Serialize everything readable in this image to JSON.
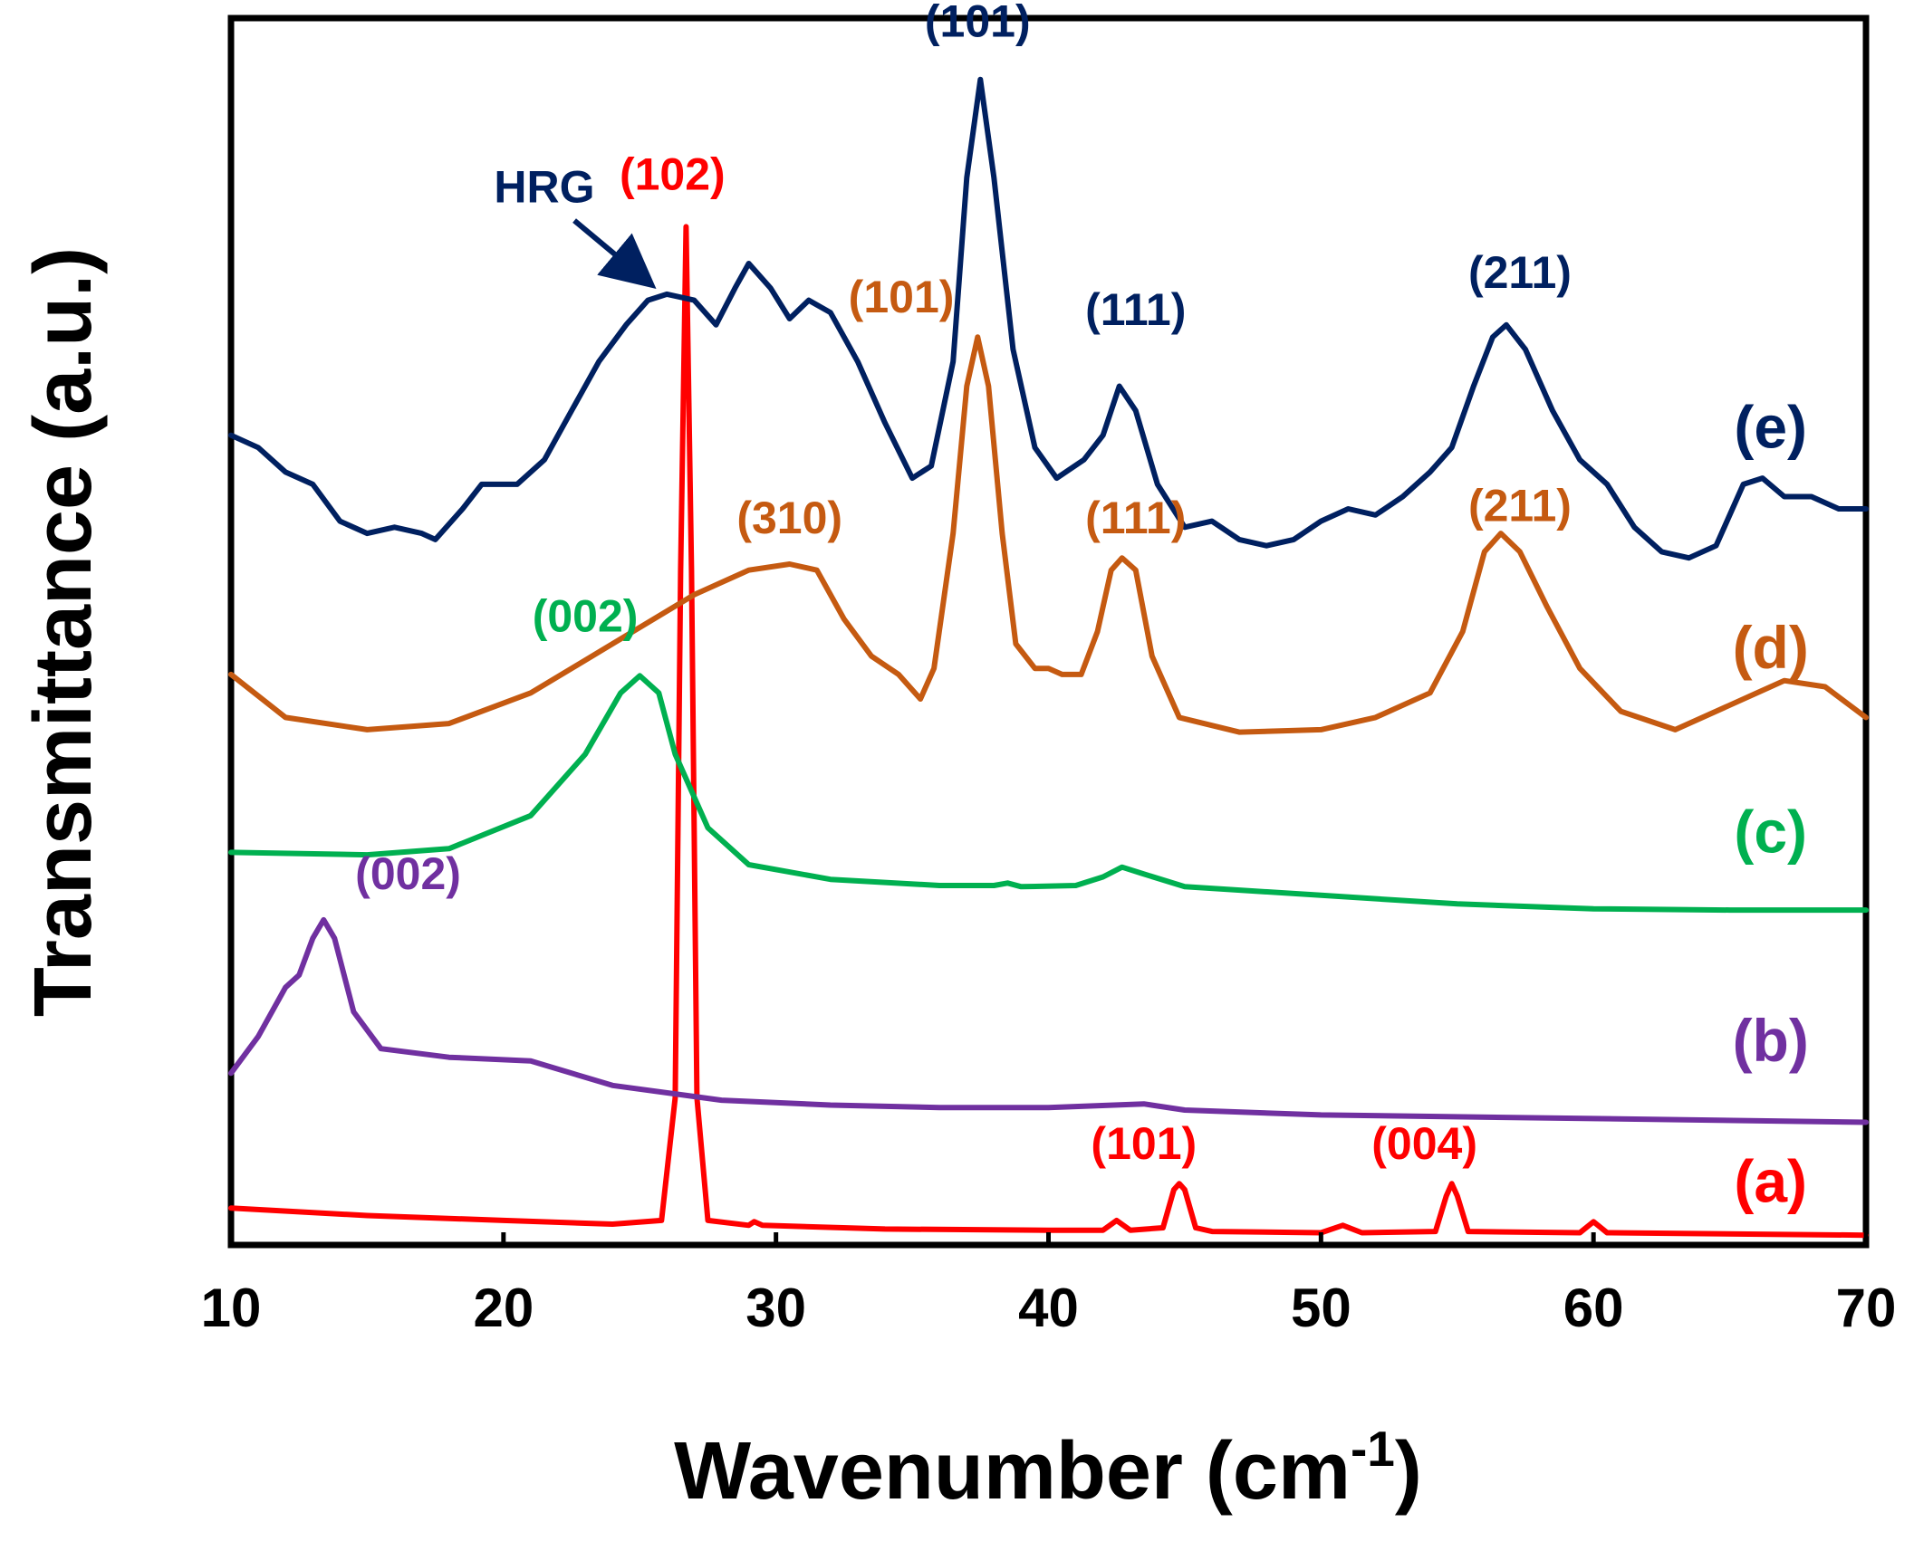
{
  "chart_data": {
    "type": "line",
    "xlabel": "Wavenumber (cm",
    "xlabel_sup": "-1",
    "xlabel_close": ")",
    "ylabel": "Transmittance (a.u.)",
    "xlim": [
      10,
      70
    ],
    "ylim": [
      0,
      100
    ],
    "x_ticks": [
      "10",
      "20",
      "30",
      "40",
      "50",
      "60",
      "70"
    ],
    "y_ticks_shown": false,
    "series": [
      {
        "name": "(a)",
        "color": "#ff0000",
        "points": [
          [
            10,
            3.0
          ],
          [
            15,
            2.4
          ],
          [
            20,
            2.0
          ],
          [
            24,
            1.7
          ],
          [
            25.8,
            2.0
          ],
          [
            26.3,
            12
          ],
          [
            26.5,
            55
          ],
          [
            26.7,
            83
          ],
          [
            26.9,
            55
          ],
          [
            27.1,
            12
          ],
          [
            27.5,
            2.0
          ],
          [
            29,
            1.6
          ],
          [
            29.2,
            1.9
          ],
          [
            29.5,
            1.6
          ],
          [
            34,
            1.3
          ],
          [
            40,
            1.2
          ],
          [
            42,
            1.2
          ],
          [
            42.5,
            2.0
          ],
          [
            43,
            1.2
          ],
          [
            44.2,
            1.4
          ],
          [
            44.6,
            4.5
          ],
          [
            44.8,
            5.0
          ],
          [
            45.0,
            4.5
          ],
          [
            45.4,
            1.4
          ],
          [
            46,
            1.1
          ],
          [
            50,
            1.0
          ],
          [
            50.8,
            1.6
          ],
          [
            51.5,
            1.0
          ],
          [
            54.2,
            1.1
          ],
          [
            54.6,
            4.0
          ],
          [
            54.8,
            5.0
          ],
          [
            55.0,
            4.0
          ],
          [
            55.4,
            1.1
          ],
          [
            59.5,
            1.0
          ],
          [
            60.0,
            1.9
          ],
          [
            60.5,
            1.0
          ],
          [
            70,
            0.8
          ]
        ]
      },
      {
        "name": "(b)",
        "color": "#7030a0",
        "points": [
          [
            10,
            14
          ],
          [
            11,
            17
          ],
          [
            12,
            21
          ],
          [
            12.5,
            22
          ],
          [
            13,
            25
          ],
          [
            13.4,
            26.5
          ],
          [
            13.8,
            25
          ],
          [
            14.5,
            19
          ],
          [
            15.5,
            16
          ],
          [
            18,
            15.3
          ],
          [
            21,
            15
          ],
          [
            24,
            13
          ],
          [
            28,
            11.8
          ],
          [
            32,
            11.4
          ],
          [
            36,
            11.2
          ],
          [
            40,
            11.2
          ],
          [
            43.5,
            11.5
          ],
          [
            45,
            11
          ],
          [
            50,
            10.6
          ],
          [
            60,
            10.3
          ],
          [
            70,
            10.0
          ]
        ]
      },
      {
        "name": "(c)",
        "color": "#00b050",
        "points": [
          [
            10,
            32
          ],
          [
            15,
            31.8
          ],
          [
            18,
            32.3
          ],
          [
            21,
            35
          ],
          [
            23,
            40
          ],
          [
            24.3,
            45
          ],
          [
            25,
            46.4
          ],
          [
            25.7,
            45
          ],
          [
            26.3,
            40
          ],
          [
            27.5,
            34
          ],
          [
            29,
            31
          ],
          [
            32,
            29.8
          ],
          [
            36,
            29.3
          ],
          [
            38,
            29.3
          ],
          [
            38.5,
            29.5
          ],
          [
            39,
            29.2
          ],
          [
            41,
            29.3
          ],
          [
            42,
            30
          ],
          [
            42.7,
            30.8
          ],
          [
            43.4,
            30.3
          ],
          [
            45,
            29.2
          ],
          [
            50,
            28.5
          ],
          [
            55,
            27.8
          ],
          [
            60,
            27.4
          ],
          [
            65,
            27.3
          ],
          [
            70,
            27.3
          ]
        ]
      },
      {
        "name": "(d)",
        "color": "#c55a11",
        "points": [
          [
            10,
            46.5
          ],
          [
            12,
            43
          ],
          [
            15,
            42
          ],
          [
            18,
            42.5
          ],
          [
            21,
            45
          ],
          [
            24,
            49
          ],
          [
            27,
            53
          ],
          [
            29,
            55
          ],
          [
            30.5,
            55.5
          ],
          [
            31.5,
            55
          ],
          [
            32.5,
            51
          ],
          [
            33.5,
            48
          ],
          [
            34.5,
            46.5
          ],
          [
            35.3,
            44.5
          ],
          [
            35.8,
            47
          ],
          [
            36.5,
            58
          ],
          [
            37.0,
            70
          ],
          [
            37.4,
            74
          ],
          [
            37.8,
            70
          ],
          [
            38.3,
            58
          ],
          [
            38.8,
            49
          ],
          [
            39.5,
            47
          ],
          [
            40,
            47
          ],
          [
            40.5,
            46.5
          ],
          [
            41.2,
            46.5
          ],
          [
            41.8,
            50
          ],
          [
            42.3,
            55
          ],
          [
            42.7,
            56
          ],
          [
            43.2,
            55
          ],
          [
            43.8,
            48
          ],
          [
            44.8,
            43
          ],
          [
            47,
            41.8
          ],
          [
            50,
            42
          ],
          [
            52,
            43
          ],
          [
            54,
            45
          ],
          [
            55.2,
            50
          ],
          [
            56,
            56.5
          ],
          [
            56.6,
            58
          ],
          [
            57.3,
            56.5
          ],
          [
            58.3,
            52
          ],
          [
            59.5,
            47
          ],
          [
            61,
            43.5
          ],
          [
            63,
            42
          ],
          [
            65,
            44
          ],
          [
            67,
            46
          ],
          [
            68.5,
            45.5
          ],
          [
            70,
            43
          ]
        ]
      },
      {
        "name": "(e)",
        "color": "#002060",
        "points": [
          [
            10,
            66
          ],
          [
            11,
            65
          ],
          [
            12,
            63
          ],
          [
            13,
            62
          ],
          [
            14,
            59
          ],
          [
            15,
            58
          ],
          [
            16,
            58.5
          ],
          [
            17,
            58
          ],
          [
            17.5,
            57.5
          ],
          [
            18.5,
            60
          ],
          [
            19.2,
            62
          ],
          [
            20.5,
            62
          ],
          [
            21.5,
            64
          ],
          [
            22.5,
            68
          ],
          [
            23.5,
            72
          ],
          [
            24.5,
            75
          ],
          [
            25.3,
            77
          ],
          [
            26,
            77.5
          ],
          [
            27,
            77
          ],
          [
            27.8,
            75
          ],
          [
            28.5,
            78
          ],
          [
            29,
            80
          ],
          [
            29.8,
            78
          ],
          [
            30.5,
            75.5
          ],
          [
            31.2,
            77
          ],
          [
            32,
            76
          ],
          [
            33,
            72
          ],
          [
            34,
            67
          ],
          [
            35,
            62.5
          ],
          [
            35.7,
            63.5
          ],
          [
            36.5,
            72
          ],
          [
            37.0,
            87
          ],
          [
            37.5,
            95
          ],
          [
            38.0,
            87
          ],
          [
            38.7,
            73
          ],
          [
            39.5,
            65
          ],
          [
            40.3,
            62.5
          ],
          [
            41.3,
            64
          ],
          [
            42,
            66
          ],
          [
            42.6,
            70
          ],
          [
            43.2,
            68
          ],
          [
            44,
            62
          ],
          [
            45,
            58.5
          ],
          [
            46,
            59
          ],
          [
            47,
            57.5
          ],
          [
            48,
            57
          ],
          [
            49,
            57.5
          ],
          [
            50,
            59
          ],
          [
            51,
            60
          ],
          [
            52,
            59.5
          ],
          [
            53,
            61
          ],
          [
            54,
            63
          ],
          [
            54.8,
            65
          ],
          [
            55.6,
            70
          ],
          [
            56.3,
            74
          ],
          [
            56.8,
            75
          ],
          [
            57.5,
            73
          ],
          [
            58.5,
            68
          ],
          [
            59.5,
            64
          ],
          [
            60.5,
            62
          ],
          [
            61.5,
            58.5
          ],
          [
            62.5,
            56.5
          ],
          [
            63.5,
            56
          ],
          [
            64.5,
            57
          ],
          [
            65.5,
            62
          ],
          [
            66.2,
            62.5
          ],
          [
            67,
            61
          ],
          [
            68,
            61
          ],
          [
            69,
            60
          ],
          [
            70,
            60
          ]
        ]
      }
    ],
    "series_labels": [
      {
        "text": "(a)",
        "color": "#ff0000",
        "x": 66.5,
        "y": 3.5
      },
      {
        "text": "(b)",
        "color": "#7030a0",
        "x": 66.5,
        "y": 15
      },
      {
        "text": "(c)",
        "color": "#00b050",
        "x": 66.5,
        "y": 32
      },
      {
        "text": "(d)",
        "color": "#c55a11",
        "x": 66.5,
        "y": 47
      },
      {
        "text": "(e)",
        "color": "#002060",
        "x": 66.5,
        "y": 65
      }
    ],
    "annotations": [
      {
        "text": "(102)",
        "color": "#ff0000",
        "x": 26.2,
        "y": 86
      },
      {
        "text": "(101)",
        "color": "#ff0000",
        "x": 43.5,
        "y": 7
      },
      {
        "text": "(004)",
        "color": "#ff0000",
        "x": 53.8,
        "y": 7
      },
      {
        "text": "(002)",
        "color": "#7030a0",
        "x": 16.5,
        "y": 29
      },
      {
        "text": "(002)",
        "color": "#00b050",
        "x": 23,
        "y": 50
      },
      {
        "text": "(310)",
        "color": "#c55a11",
        "x": 30.5,
        "y": 58
      },
      {
        "text": "(101)",
        "color": "#c55a11",
        "x": 34.6,
        "y": 76
      },
      {
        "text": "(111)",
        "color": "#c55a11",
        "x": 43.2,
        "y": 58
      },
      {
        "text": "(211)",
        "color": "#c55a11",
        "x": 57.3,
        "y": 59
      },
      {
        "text": "(101)",
        "color": "#002060",
        "x": 37.4,
        "y": 98.5
      },
      {
        "text": "(111)",
        "color": "#002060",
        "x": 43.2,
        "y": 75
      },
      {
        "text": "(211)",
        "color": "#002060",
        "x": 57.3,
        "y": 78
      },
      {
        "text": "HRG",
        "color": "#002060",
        "x": 21.5,
        "y": 85
      }
    ],
    "arrow": {
      "color": "#002060",
      "from": [
        22.6,
        83.5
      ],
      "to": [
        25.3,
        78.5
      ]
    }
  }
}
